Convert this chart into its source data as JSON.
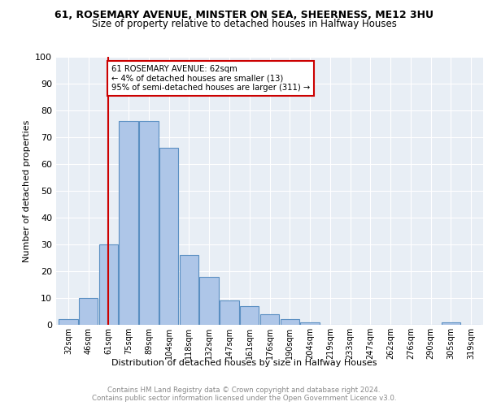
{
  "title1": "61, ROSEMARY AVENUE, MINSTER ON SEA, SHEERNESS, ME12 3HU",
  "title2": "Size of property relative to detached houses in Halfway Houses",
  "xlabel": "Distribution of detached houses by size in Halfway Houses",
  "ylabel": "Number of detached properties",
  "footer1": "Contains HM Land Registry data © Crown copyright and database right 2024.",
  "footer2": "Contains public sector information licensed under the Open Government Licence v3.0.",
  "bin_labels": [
    "32sqm",
    "46sqm",
    "61sqm",
    "75sqm",
    "89sqm",
    "104sqm",
    "118sqm",
    "132sqm",
    "147sqm",
    "161sqm",
    "176sqm",
    "190sqm",
    "204sqm",
    "219sqm",
    "233sqm",
    "247sqm",
    "262sqm",
    "276sqm",
    "290sqm",
    "305sqm",
    "319sqm"
  ],
  "bar_heights": [
    2,
    10,
    30,
    76,
    76,
    66,
    26,
    18,
    9,
    7,
    4,
    2,
    1,
    0,
    0,
    0,
    0,
    0,
    0,
    1,
    0
  ],
  "bar_color": "#aec6e8",
  "bar_edge_color": "#5a8fc2",
  "vline_x_index": 2,
  "vline_color": "#cc0000",
  "annotation_text": "61 ROSEMARY AVENUE: 62sqm\n← 4% of detached houses are smaller (13)\n95% of semi-detached houses are larger (311) →",
  "annotation_box_color": "#ffffff",
  "annotation_box_edge": "#cc0000",
  "ylim": [
    0,
    100
  ],
  "yticks": [
    0,
    10,
    20,
    30,
    40,
    50,
    60,
    70,
    80,
    90,
    100
  ],
  "plot_bg_color": "#e8eef5",
  "grid_color": "#ffffff"
}
